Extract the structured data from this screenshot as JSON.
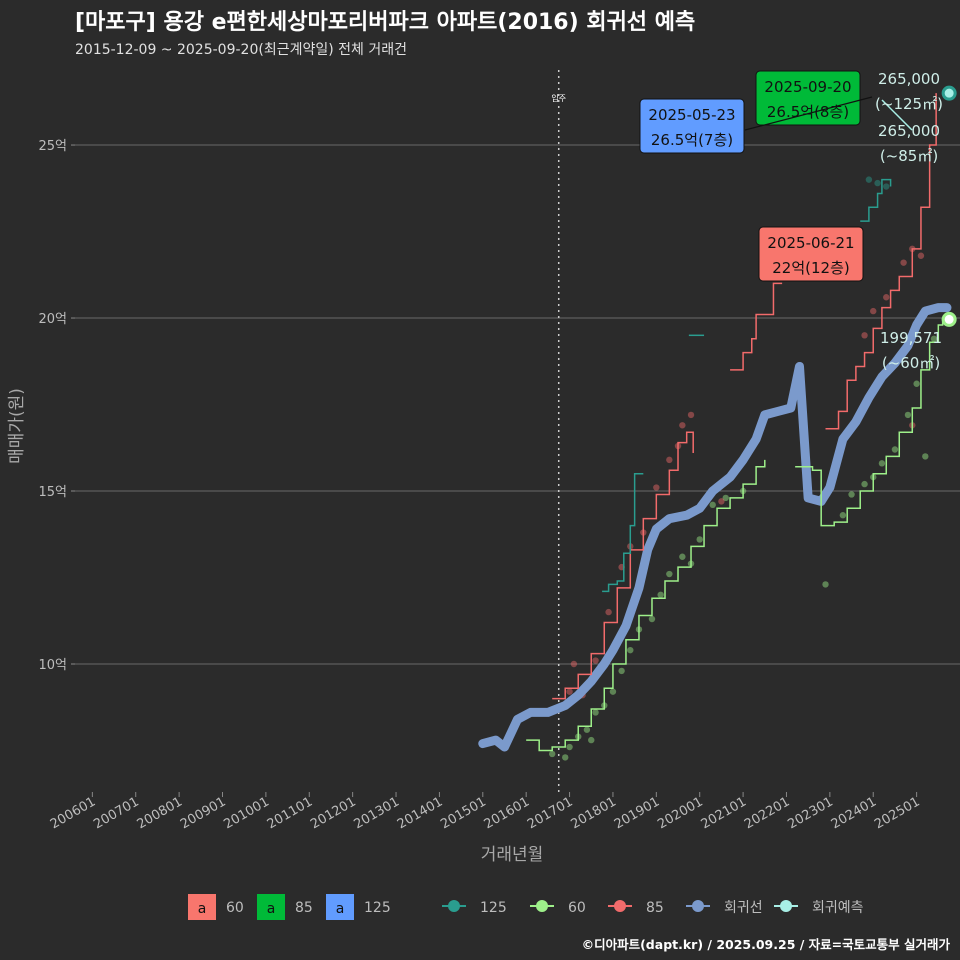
{
  "title": "[마포구] 용강 e편한세상마포리버파크 아파트(2016) 회귀선 예측",
  "subtitle": "2015-12-09 ~ 2025-09-20(최근계약일) 전체 거래건",
  "footer": "©디아파트(dapt.kr) / 2025.09.25 / 자료=국토교통부 실거래가",
  "colors": {
    "s60": "#9ef08a",
    "s85": "#f26b6b",
    "s125": "#2a9d8f",
    "regression": "#7b9acc",
    "prediction": "#a8efe6",
    "box60": "#f8766d",
    "box85": "#00ba38",
    "box125": "#619cff"
  },
  "chart_data": {
    "type": "line",
    "xlabel": "거래년월",
    "ylabel": "매매가(원)",
    "x_ticks": [
      "200601",
      "200701",
      "200801",
      "200901",
      "201001",
      "201101",
      "201201",
      "201301",
      "201401",
      "201501",
      "201601",
      "201701",
      "201801",
      "201901",
      "202001",
      "202101",
      "202201",
      "202301",
      "202401",
      "202501"
    ],
    "y_ticks": [
      {
        "value": 10,
        "label": "10억"
      },
      {
        "value": 15,
        "label": "15억"
      },
      {
        "value": 20,
        "label": "20억"
      },
      {
        "value": 25,
        "label": "25억"
      }
    ],
    "xlim": [
      2005.6,
      2026.0
    ],
    "ylim": [
      6.3,
      27.4
    ],
    "vline": {
      "x": 2016.75,
      "label": "입주"
    },
    "series": [
      {
        "name": "60",
        "color": "#9ef08a",
        "points": [
          [
            2016.0,
            7.8
          ],
          [
            2016.3,
            7.5
          ],
          [
            2016.6,
            7.6
          ],
          [
            2016.9,
            7.8
          ],
          [
            2017.2,
            8.2
          ],
          [
            2017.5,
            8.7
          ],
          [
            2017.8,
            9.3
          ],
          [
            2018.0,
            10.0
          ],
          [
            2018.3,
            10.7
          ],
          [
            2018.6,
            11.4
          ],
          [
            2018.9,
            11.9
          ],
          [
            2019.2,
            12.4
          ],
          [
            2019.5,
            12.8
          ],
          [
            2019.8,
            13.4
          ],
          [
            2020.1,
            14.0
          ],
          [
            2020.4,
            14.5
          ],
          [
            2020.7,
            14.8
          ],
          [
            2021.0,
            15.2
          ],
          [
            2021.3,
            15.7
          ],
          [
            2021.5,
            15.9
          ]
        ]
      },
      {
        "name": "60b",
        "color": "#9ef08a",
        "points": [
          [
            2022.2,
            15.7
          ],
          [
            2022.6,
            15.6
          ],
          [
            2022.8,
            14.0
          ],
          [
            2023.1,
            14.1
          ],
          [
            2023.4,
            14.5
          ],
          [
            2023.7,
            15.0
          ],
          [
            2024.0,
            15.5
          ],
          [
            2024.3,
            16.0
          ],
          [
            2024.6,
            16.7
          ],
          [
            2024.9,
            17.4
          ],
          [
            2025.1,
            18.5
          ],
          [
            2025.3,
            19.3
          ],
          [
            2025.5,
            19.8
          ],
          [
            2025.6,
            20.0
          ]
        ]
      },
      {
        "name": "85",
        "color": "#f26b6b",
        "points": [
          [
            2016.6,
            9.0
          ],
          [
            2016.9,
            9.3
          ],
          [
            2017.2,
            9.7
          ],
          [
            2017.5,
            10.3
          ],
          [
            2017.8,
            11.2
          ],
          [
            2018.1,
            12.2
          ],
          [
            2018.4,
            13.3
          ],
          [
            2018.7,
            14.2
          ],
          [
            2019.0,
            14.9
          ],
          [
            2019.3,
            15.6
          ],
          [
            2019.5,
            16.4
          ],
          [
            2019.7,
            16.7
          ],
          [
            2019.85,
            16.1
          ]
        ]
      },
      {
        "name": "85b",
        "color": "#f26b6b",
        "points": [
          [
            2020.7,
            18.5
          ],
          [
            2020.9,
            18.5
          ],
          [
            2021.0,
            19.0
          ],
          [
            2021.2,
            19.4
          ],
          [
            2021.3,
            20.1
          ],
          [
            2021.6,
            20.1
          ],
          [
            2021.7,
            21.0
          ],
          [
            2021.9,
            21.0
          ]
        ]
      },
      {
        "name": "85c",
        "color": "#f26b6b",
        "points": [
          [
            2022.9,
            16.8
          ],
          [
            2023.2,
            17.3
          ],
          [
            2023.4,
            18.2
          ],
          [
            2023.6,
            18.6
          ],
          [
            2023.8,
            19.0
          ],
          [
            2024.0,
            19.7
          ],
          [
            2024.2,
            20.3
          ],
          [
            2024.4,
            20.8
          ],
          [
            2024.6,
            21.2
          ],
          [
            2024.9,
            22.0
          ],
          [
            2025.1,
            23.2
          ],
          [
            2025.3,
            25.0
          ],
          [
            2025.45,
            26.5
          ]
        ]
      },
      {
        "name": "125",
        "color": "#2a9d8f",
        "points": [
          [
            2017.75,
            12.1
          ],
          [
            2017.9,
            12.3
          ],
          [
            2018.1,
            12.4
          ],
          [
            2018.25,
            13.2
          ],
          [
            2018.4,
            14.0
          ],
          [
            2018.5,
            15.5
          ],
          [
            2018.7,
            15.5
          ]
        ]
      },
      {
        "name": "125b",
        "color": "#2a9d8f",
        "points": [
          [
            2019.75,
            19.5
          ],
          [
            2020.1,
            19.5
          ]
        ]
      },
      {
        "name": "125c",
        "color": "#2a9d8f",
        "points": [
          [
            2023.7,
            22.8
          ],
          [
            2023.9,
            23.2
          ],
          [
            2024.1,
            23.6
          ],
          [
            2024.2,
            24.0
          ],
          [
            2024.4,
            23.8
          ]
        ]
      }
    ],
    "regression": [
      [
        2015.0,
        7.7
      ],
      [
        2015.3,
        7.8
      ],
      [
        2015.5,
        7.6
      ],
      [
        2015.8,
        8.4
      ],
      [
        2016.1,
        8.6
      ],
      [
        2016.5,
        8.6
      ],
      [
        2016.9,
        8.8
      ],
      [
        2017.2,
        9.1
      ],
      [
        2017.5,
        9.5
      ],
      [
        2017.8,
        10.0
      ],
      [
        2018.0,
        10.4
      ],
      [
        2018.3,
        11.1
      ],
      [
        2018.6,
        12.2
      ],
      [
        2018.8,
        13.3
      ],
      [
        2019.0,
        13.9
      ],
      [
        2019.3,
        14.2
      ],
      [
        2019.7,
        14.3
      ],
      [
        2020.0,
        14.5
      ],
      [
        2020.3,
        15.0
      ],
      [
        2020.7,
        15.4
      ],
      [
        2021.0,
        15.9
      ],
      [
        2021.3,
        16.5
      ],
      [
        2021.5,
        17.2
      ],
      [
        2021.8,
        17.3
      ],
      [
        2022.1,
        17.4
      ],
      [
        2022.3,
        18.6
      ],
      [
        2022.5,
        14.8
      ],
      [
        2022.8,
        14.7
      ],
      [
        2023.0,
        15.1
      ],
      [
        2023.3,
        16.5
      ],
      [
        2023.6,
        17.0
      ],
      [
        2023.9,
        17.7
      ],
      [
        2024.2,
        18.3
      ],
      [
        2024.5,
        18.7
      ],
      [
        2024.8,
        19.2
      ],
      [
        2025.0,
        19.8
      ],
      [
        2025.2,
        20.2
      ],
      [
        2025.5,
        20.3
      ],
      [
        2025.7,
        20.3
      ]
    ],
    "scatter_points": [
      {
        "series": "60",
        "points": [
          [
            2016.6,
            7.4
          ],
          [
            2016.9,
            7.3
          ],
          [
            2017.0,
            7.6
          ],
          [
            2017.2,
            7.9
          ],
          [
            2017.4,
            8.1
          ],
          [
            2017.5,
            7.8
          ],
          [
            2017.6,
            8.6
          ],
          [
            2017.8,
            8.8
          ],
          [
            2018.0,
            9.2
          ],
          [
            2018.2,
            9.8
          ],
          [
            2018.4,
            10.4
          ],
          [
            2018.6,
            11.0
          ],
          [
            2018.9,
            11.3
          ],
          [
            2019.1,
            12.0
          ],
          [
            2019.3,
            12.6
          ],
          [
            2019.6,
            13.1
          ],
          [
            2019.8,
            12.9
          ],
          [
            2020.0,
            13.6
          ],
          [
            2020.3,
            14.6
          ],
          [
            2020.6,
            14.8
          ],
          [
            2021.0,
            15.0
          ],
          [
            2022.9,
            12.3
          ],
          [
            2023.3,
            14.3
          ],
          [
            2023.5,
            14.9
          ],
          [
            2023.8,
            15.2
          ],
          [
            2024.0,
            15.4
          ],
          [
            2024.2,
            15.8
          ],
          [
            2024.5,
            16.2
          ],
          [
            2024.8,
            17.2
          ],
          [
            2025.0,
            18.1
          ],
          [
            2025.2,
            16.0
          ],
          [
            2025.4,
            19.4
          ]
        ]
      },
      {
        "series": "85",
        "points": [
          [
            2017.0,
            9.2
          ],
          [
            2017.1,
            10.0
          ],
          [
            2017.3,
            9.1
          ],
          [
            2017.6,
            10.1
          ],
          [
            2017.9,
            11.5
          ],
          [
            2018.2,
            12.8
          ],
          [
            2018.4,
            13.4
          ],
          [
            2018.7,
            13.8
          ],
          [
            2019.0,
            15.1
          ],
          [
            2019.3,
            15.9
          ],
          [
            2019.5,
            16.3
          ],
          [
            2019.6,
            16.9
          ],
          [
            2019.8,
            17.2
          ],
          [
            2020.5,
            14.7
          ],
          [
            2023.8,
            19.5
          ],
          [
            2024.0,
            20.2
          ],
          [
            2024.3,
            20.6
          ],
          [
            2024.7,
            21.6
          ],
          [
            2024.9,
            22.0
          ],
          [
            2025.1,
            21.8
          ],
          [
            2024.9,
            16.9
          ]
        ]
      },
      {
        "series": "125",
        "points": [
          [
            2023.9,
            24.0
          ],
          [
            2024.1,
            23.9
          ],
          [
            2024.3,
            23.8
          ]
        ]
      }
    ],
    "labels": [
      {
        "date": "2025-09-20",
        "price": "26.5억(8층)",
        "color": "#00ba38"
      },
      {
        "date": "2025-05-23",
        "price": "26.5억(7층)",
        "color": "#619cff"
      },
      {
        "date": "2025-06-21",
        "price": "22억(12층)",
        "color": "#f8766d"
      }
    ],
    "end_labels": [
      {
        "line1": "265,000",
        "line2": "(~125㎡)",
        "value": 26.5
      },
      {
        "line1": "265,000",
        "line2": "(~85㎡)",
        "value": 26.5
      },
      {
        "line1": "199,571",
        "line2": "(~60㎡)",
        "value": 19.96
      }
    ],
    "legend_boxes": [
      {
        "letter": "a",
        "label": "60",
        "color": "#f8766d"
      },
      {
        "letter": "a",
        "label": "85",
        "color": "#00ba38"
      },
      {
        "letter": "a",
        "label": "125",
        "color": "#619cff"
      }
    ],
    "legend_lines": [
      {
        "label": "125",
        "color": "#2a9d8f"
      },
      {
        "label": "60",
        "color": "#9ef08a"
      },
      {
        "label": "85",
        "color": "#f26b6b"
      },
      {
        "label": "회귀선",
        "color": "#7b9acc"
      },
      {
        "label": "회귀예측",
        "color": "#a8efe6"
      }
    ]
  }
}
